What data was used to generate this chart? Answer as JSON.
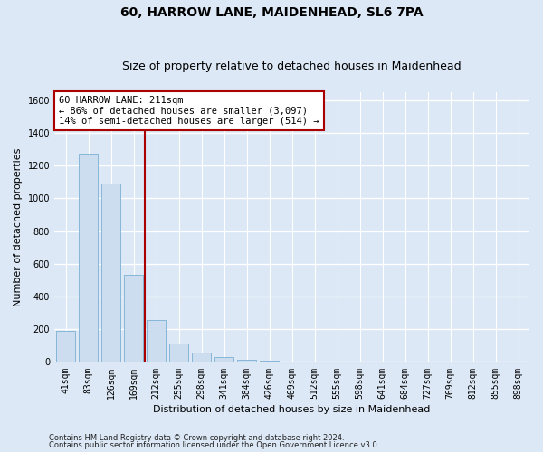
{
  "title": "60, HARROW LANE, MAIDENHEAD, SL6 7PA",
  "subtitle": "Size of property relative to detached houses in Maidenhead",
  "xlabel": "Distribution of detached houses by size in Maidenhead",
  "ylabel": "Number of detached properties",
  "footer1": "Contains HM Land Registry data © Crown copyright and database right 2024.",
  "footer2": "Contains public sector information licensed under the Open Government Licence v3.0.",
  "categories": [
    "41sqm",
    "83sqm",
    "126sqm",
    "169sqm",
    "212sqm",
    "255sqm",
    "298sqm",
    "341sqm",
    "384sqm",
    "426sqm",
    "469sqm",
    "512sqm",
    "555sqm",
    "598sqm",
    "641sqm",
    "684sqm",
    "727sqm",
    "769sqm",
    "812sqm",
    "855sqm",
    "898sqm"
  ],
  "values": [
    190,
    1270,
    1090,
    530,
    255,
    115,
    55,
    30,
    15,
    8,
    4,
    2,
    0,
    0,
    3,
    0,
    0,
    0,
    0,
    0,
    0
  ],
  "bar_color": "#ccddf0",
  "bar_edge_color": "#7bafd4",
  "vline_x_idx": 4,
  "vline_color": "#aa0000",
  "annotation_text": "60 HARROW LANE: 211sqm\n← 86% of detached houses are smaller (3,097)\n14% of semi-detached houses are larger (514) →",
  "annotation_box_color": "#ffffff",
  "annotation_box_edge": "#aa0000",
  "ylim": [
    0,
    1650
  ],
  "yticks": [
    0,
    200,
    400,
    600,
    800,
    1000,
    1200,
    1400,
    1600
  ],
  "bg_color": "#dce8f5",
  "plot_bg_color": "#dce8f5",
  "grid_color": "#ffffff",
  "title_fontsize": 10,
  "subtitle_fontsize": 9,
  "axis_label_fontsize": 8,
  "tick_fontsize": 7,
  "annotation_fontsize": 7.5,
  "footer_fontsize": 6
}
